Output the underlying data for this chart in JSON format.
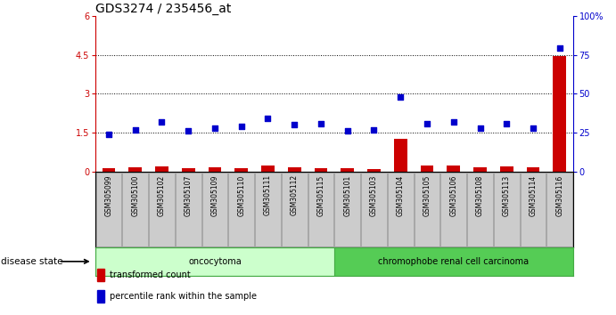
{
  "title": "GDS3274 / 235456_at",
  "samples": [
    "GSM305099",
    "GSM305100",
    "GSM305102",
    "GSM305107",
    "GSM305109",
    "GSM305110",
    "GSM305111",
    "GSM305112",
    "GSM305115",
    "GSM305101",
    "GSM305103",
    "GSM305104",
    "GSM305105",
    "GSM305106",
    "GSM305108",
    "GSM305113",
    "GSM305114",
    "GSM305116"
  ],
  "transformed_count": [
    0.12,
    0.18,
    0.22,
    0.14,
    0.17,
    0.12,
    0.25,
    0.18,
    0.13,
    0.14,
    0.1,
    1.28,
    0.23,
    0.25,
    0.17,
    0.22,
    0.16,
    4.45
  ],
  "percentile_rank": [
    24,
    27,
    32,
    26,
    28,
    29,
    34,
    30,
    31,
    26,
    27,
    48,
    31,
    32,
    28,
    31,
    28,
    79
  ],
  "groups": [
    {
      "label": "oncocytoma",
      "start": 0,
      "end": 9,
      "color": "#ccffcc",
      "border": "#44aa44"
    },
    {
      "label": "chromophobe renal cell carcinoma",
      "start": 9,
      "end": 18,
      "color": "#55cc55",
      "border": "#44aa44"
    }
  ],
  "bar_color": "#cc0000",
  "scatter_color": "#0000cc",
  "ylim_left": [
    0,
    6
  ],
  "ylim_right": [
    0,
    100
  ],
  "yticks_left": [
    0,
    1.5,
    3.0,
    4.5,
    6.0
  ],
  "ytick_labels_left": [
    "0",
    "1.5",
    "3",
    "4.5",
    "6"
  ],
  "yticks_right": [
    0,
    25,
    50,
    75,
    100
  ],
  "ytick_labels_right": [
    "0",
    "25",
    "50",
    "75",
    "100%"
  ],
  "hlines": [
    1.5,
    3.0,
    4.5
  ],
  "disease_state_label": "disease state",
  "legend_items": [
    {
      "label": "transformed count",
      "color": "#cc0000"
    },
    {
      "label": "percentile rank within the sample",
      "color": "#0000cc"
    }
  ],
  "title_fontsize": 10,
  "tick_fontsize": 7,
  "bar_width": 0.5,
  "sample_box_color": "#cccccc",
  "sample_box_edge": "#888888"
}
